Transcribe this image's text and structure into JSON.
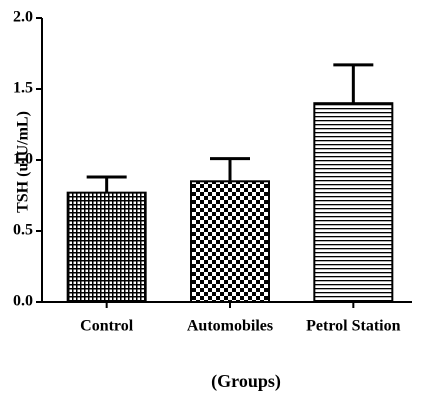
{
  "chart_data": {
    "type": "bar",
    "y_label": "TSH (uIU/mL)",
    "x_label": "(Groups)",
    "categories": [
      "Control",
      "Automobiles",
      "Petrol Station"
    ],
    "values": [
      0.77,
      0.85,
      1.4
    ],
    "errors": [
      0.11,
      0.16,
      0.27
    ],
    "patterns": [
      "grid",
      "checker",
      "hlines"
    ],
    "color": "#000000",
    "ylim": [
      0,
      2.0
    ],
    "yticks": [
      {
        "value": 0,
        "label": "0.0"
      },
      {
        "value": 0.5,
        "label": "0.5"
      },
      {
        "value": 1,
        "label": "1.0"
      },
      {
        "value": 1.5,
        "label": "1.5"
      },
      {
        "value": 2,
        "label": "2.0"
      }
    ],
    "grid": false
  }
}
